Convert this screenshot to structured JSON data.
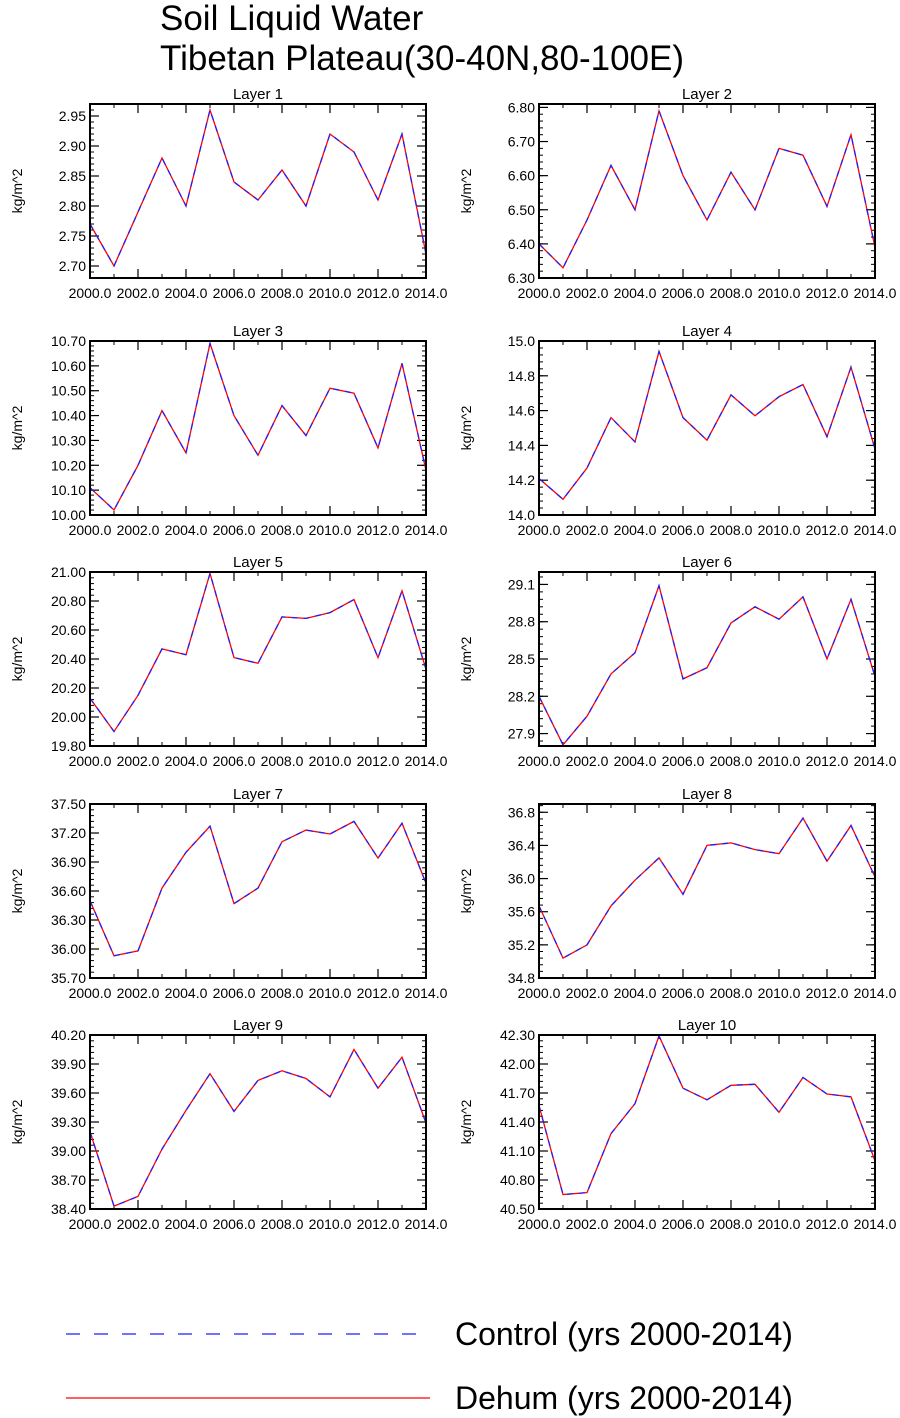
{
  "figure": {
    "title_line1": "Soil Liquid Water",
    "title_line2": "Tibetan Plateau(30-40N,80-100E)"
  },
  "colors": {
    "control": "#1f1fff",
    "dehum": "#ff0000",
    "axis": "#000000"
  },
  "legend": {
    "control_label": "Control (yrs 2000-2014)",
    "dehum_label": "Dehum (yrs 2000-2014)"
  },
  "chart_data": [
    {
      "type": "line",
      "title": "Layer 1",
      "xlabel": "",
      "ylabel": "kg/m^2",
      "xlim": [
        2000,
        2014
      ],
      "xticks": [
        2000,
        2002,
        2004,
        2006,
        2008,
        2010,
        2012,
        2014
      ],
      "xtick_labels": [
        "2000.0",
        "2002.0",
        "2004.0",
        "2006.0",
        "2008.0",
        "2010.0",
        "2012.0",
        "2014.0"
      ],
      "ylim": [
        2.68,
        2.97
      ],
      "yticks": [
        2.7,
        2.75,
        2.8,
        2.85,
        2.9,
        2.95
      ],
      "ytick_labels": [
        "2.70",
        "2.75",
        "2.80",
        "2.85",
        "2.90",
        "2.95"
      ],
      "x": [
        2000,
        2001,
        2002,
        2003,
        2004,
        2005,
        2006,
        2007,
        2008,
        2009,
        2010,
        2011,
        2012,
        2013,
        2014
      ],
      "series": [
        {
          "name": "Control (yrs 2000-2014)",
          "values": [
            2.77,
            2.7,
            2.79,
            2.88,
            2.8,
            2.96,
            2.84,
            2.81,
            2.86,
            2.8,
            2.92,
            2.89,
            2.81,
            2.92,
            2.72
          ]
        },
        {
          "name": "Dehum (yrs 2000-2014)",
          "values": [
            2.77,
            2.7,
            2.79,
            2.88,
            2.8,
            2.96,
            2.84,
            2.81,
            2.86,
            2.8,
            2.92,
            2.89,
            2.81,
            2.92,
            2.72
          ]
        }
      ]
    },
    {
      "type": "line",
      "title": "Layer 2",
      "xlabel": "",
      "ylabel": "kg/m^2",
      "xlim": [
        2000,
        2014
      ],
      "xticks": [
        2000,
        2002,
        2004,
        2006,
        2008,
        2010,
        2012,
        2014
      ],
      "xtick_labels": [
        "2000.0",
        "2002.0",
        "2004.0",
        "2006.0",
        "2008.0",
        "2010.0",
        "2012.0",
        "2014.0"
      ],
      "ylim": [
        6.3,
        6.81
      ],
      "yticks": [
        6.3,
        6.4,
        6.5,
        6.6,
        6.7,
        6.8
      ],
      "ytick_labels": [
        "6.30",
        "6.40",
        "6.50",
        "6.60",
        "6.70",
        "6.80"
      ],
      "x": [
        2000,
        2001,
        2002,
        2003,
        2004,
        2005,
        2006,
        2007,
        2008,
        2009,
        2010,
        2011,
        2012,
        2013,
        2014
      ],
      "series": [
        {
          "name": "Control (yrs 2000-2014)",
          "values": [
            6.4,
            6.33,
            6.47,
            6.63,
            6.5,
            6.79,
            6.6,
            6.47,
            6.61,
            6.5,
            6.68,
            6.66,
            6.51,
            6.72,
            6.39
          ]
        },
        {
          "name": "Dehum (yrs 2000-2014)",
          "values": [
            6.4,
            6.33,
            6.47,
            6.63,
            6.5,
            6.79,
            6.6,
            6.47,
            6.61,
            6.5,
            6.68,
            6.66,
            6.51,
            6.72,
            6.39
          ]
        }
      ]
    },
    {
      "type": "line",
      "title": "Layer 3",
      "xlabel": "",
      "ylabel": "kg/m^2",
      "xlim": [
        2000,
        2014
      ],
      "xticks": [
        2000,
        2002,
        2004,
        2006,
        2008,
        2010,
        2012,
        2014
      ],
      "xtick_labels": [
        "2000.0",
        "2002.0",
        "2004.0",
        "2006.0",
        "2008.0",
        "2010.0",
        "2012.0",
        "2014.0"
      ],
      "ylim": [
        10.0,
        10.7
      ],
      "yticks": [
        10.0,
        10.1,
        10.2,
        10.3,
        10.4,
        10.5,
        10.6,
        10.7
      ],
      "ytick_labels": [
        "10.00",
        "10.10",
        "10.20",
        "10.30",
        "10.40",
        "10.50",
        "10.60",
        "10.70"
      ],
      "x": [
        2000,
        2001,
        2002,
        2003,
        2004,
        2005,
        2006,
        2007,
        2008,
        2009,
        2010,
        2011,
        2012,
        2013,
        2014
      ],
      "series": [
        {
          "name": "Control (yrs 2000-2014)",
          "values": [
            10.11,
            10.02,
            10.2,
            10.42,
            10.25,
            10.69,
            10.4,
            10.24,
            10.44,
            10.32,
            10.51,
            10.49,
            10.27,
            10.61,
            10.18
          ]
        },
        {
          "name": "Dehum (yrs 2000-2014)",
          "values": [
            10.11,
            10.02,
            10.2,
            10.42,
            10.25,
            10.69,
            10.4,
            10.24,
            10.44,
            10.32,
            10.51,
            10.49,
            10.27,
            10.61,
            10.18
          ]
        }
      ]
    },
    {
      "type": "line",
      "title": "Layer 4",
      "xlabel": "",
      "ylabel": "kg/m^2",
      "xlim": [
        2000,
        2014
      ],
      "xticks": [
        2000,
        2002,
        2004,
        2006,
        2008,
        2010,
        2012,
        2014
      ],
      "xtick_labels": [
        "2000.0",
        "2002.0",
        "2004.0",
        "2006.0",
        "2008.0",
        "2010.0",
        "2012.0",
        "2014.0"
      ],
      "ylim": [
        14.0,
        15.0
      ],
      "yticks": [
        14.0,
        14.2,
        14.4,
        14.6,
        14.8,
        15.0
      ],
      "ytick_labels": [
        "14.0",
        "14.2",
        "14.4",
        "14.6",
        "14.8",
        "15.0"
      ],
      "x": [
        2000,
        2001,
        2002,
        2003,
        2004,
        2005,
        2006,
        2007,
        2008,
        2009,
        2010,
        2011,
        2012,
        2013,
        2014
      ],
      "series": [
        {
          "name": "Control (yrs 2000-2014)",
          "values": [
            14.21,
            14.09,
            14.27,
            14.56,
            14.42,
            14.94,
            14.56,
            14.43,
            14.69,
            14.57,
            14.68,
            14.75,
            14.45,
            14.85,
            14.38
          ]
        },
        {
          "name": "Dehum (yrs 2000-2014)",
          "values": [
            14.21,
            14.09,
            14.27,
            14.56,
            14.42,
            14.94,
            14.56,
            14.43,
            14.69,
            14.57,
            14.68,
            14.75,
            14.45,
            14.85,
            14.38
          ]
        }
      ]
    },
    {
      "type": "line",
      "title": "Layer 5",
      "xlabel": "",
      "ylabel": "kg/m^2",
      "xlim": [
        2000,
        2014
      ],
      "xticks": [
        2000,
        2002,
        2004,
        2006,
        2008,
        2010,
        2012,
        2014
      ],
      "xtick_labels": [
        "2000.0",
        "2002.0",
        "2004.0",
        "2006.0",
        "2008.0",
        "2010.0",
        "2012.0",
        "2014.0"
      ],
      "ylim": [
        19.8,
        21.0
      ],
      "yticks": [
        19.8,
        20.0,
        20.2,
        20.4,
        20.6,
        20.8,
        21.0
      ],
      "ytick_labels": [
        "19.80",
        "20.00",
        "20.20",
        "20.40",
        "20.60",
        "20.80",
        "21.00"
      ],
      "x": [
        2000,
        2001,
        2002,
        2003,
        2004,
        2005,
        2006,
        2007,
        2008,
        2009,
        2010,
        2011,
        2012,
        2013,
        2014
      ],
      "series": [
        {
          "name": "Control (yrs 2000-2014)",
          "values": [
            20.13,
            19.9,
            20.15,
            20.47,
            20.43,
            20.99,
            20.41,
            20.37,
            20.69,
            20.68,
            20.72,
            20.81,
            20.41,
            20.87,
            20.33
          ]
        },
        {
          "name": "Dehum (yrs 2000-2014)",
          "values": [
            20.13,
            19.9,
            20.15,
            20.47,
            20.43,
            20.99,
            20.41,
            20.37,
            20.69,
            20.68,
            20.72,
            20.81,
            20.41,
            20.87,
            20.33
          ]
        }
      ]
    },
    {
      "type": "line",
      "title": "Layer 6",
      "xlabel": "",
      "ylabel": "kg/m^2",
      "xlim": [
        2000,
        2014
      ],
      "xticks": [
        2000,
        2002,
        2004,
        2006,
        2008,
        2010,
        2012,
        2014
      ],
      "xtick_labels": [
        "2000.0",
        "2002.0",
        "2004.0",
        "2006.0",
        "2008.0",
        "2010.0",
        "2012.0",
        "2014.0"
      ],
      "ylim": [
        27.8,
        29.2
      ],
      "yticks": [
        27.9,
        28.2,
        28.5,
        28.8,
        29.1
      ],
      "ytick_labels": [
        "27.9",
        "28.2",
        "28.5",
        "28.8",
        "29.1"
      ],
      "x": [
        2000,
        2001,
        2002,
        2003,
        2004,
        2005,
        2006,
        2007,
        2008,
        2009,
        2010,
        2011,
        2012,
        2013,
        2014
      ],
      "series": [
        {
          "name": "Control (yrs 2000-2014)",
          "values": [
            28.2,
            27.81,
            28.04,
            28.38,
            28.55,
            29.09,
            28.34,
            28.43,
            28.79,
            28.92,
            28.82,
            29.0,
            28.5,
            28.98,
            28.36
          ]
        },
        {
          "name": "Dehum (yrs 2000-2014)",
          "values": [
            28.2,
            27.81,
            28.04,
            28.38,
            28.55,
            29.09,
            28.34,
            28.43,
            28.79,
            28.92,
            28.82,
            29.0,
            28.5,
            28.98,
            28.36
          ]
        }
      ]
    },
    {
      "type": "line",
      "title": "Layer 7",
      "xlabel": "",
      "ylabel": "kg/m^2",
      "xlim": [
        2000,
        2014
      ],
      "xticks": [
        2000,
        2002,
        2004,
        2006,
        2008,
        2010,
        2012,
        2014
      ],
      "xtick_labels": [
        "2000.0",
        "2002.0",
        "2004.0",
        "2006.0",
        "2008.0",
        "2010.0",
        "2012.0",
        "2014.0"
      ],
      "ylim": [
        35.7,
        37.5
      ],
      "yticks": [
        35.7,
        36.0,
        36.3,
        36.6,
        36.9,
        37.2,
        37.5
      ],
      "ytick_labels": [
        "35.70",
        "36.00",
        "36.30",
        "36.60",
        "36.90",
        "37.20",
        "37.50"
      ],
      "x": [
        2000,
        2001,
        2002,
        2003,
        2004,
        2005,
        2006,
        2007,
        2008,
        2009,
        2010,
        2011,
        2012,
        2013,
        2014
      ],
      "series": [
        {
          "name": "Control (yrs 2000-2014)",
          "values": [
            36.5,
            35.93,
            35.98,
            36.63,
            37.0,
            37.27,
            36.47,
            36.63,
            37.11,
            37.23,
            37.19,
            37.32,
            36.94,
            37.3,
            36.68
          ]
        },
        {
          "name": "Dehum (yrs 2000-2014)",
          "values": [
            36.5,
            35.93,
            35.98,
            36.63,
            37.0,
            37.27,
            36.47,
            36.63,
            37.11,
            37.23,
            37.19,
            37.32,
            36.94,
            37.3,
            36.68
          ]
        }
      ]
    },
    {
      "type": "line",
      "title": "Layer 8",
      "xlabel": "",
      "ylabel": "kg/m^2",
      "xlim": [
        2000,
        2014
      ],
      "xticks": [
        2000,
        2002,
        2004,
        2006,
        2008,
        2010,
        2012,
        2014
      ],
      "xtick_labels": [
        "2000.0",
        "2002.0",
        "2004.0",
        "2006.0",
        "2008.0",
        "2010.0",
        "2012.0",
        "2014.0"
      ],
      "ylim": [
        34.8,
        36.9
      ],
      "yticks": [
        34.8,
        35.2,
        35.6,
        36.0,
        36.4,
        36.8
      ],
      "ytick_labels": [
        "34.8",
        "35.2",
        "35.6",
        "36.0",
        "36.4",
        "36.8"
      ],
      "x": [
        2000,
        2001,
        2002,
        2003,
        2004,
        2005,
        2006,
        2007,
        2008,
        2009,
        2010,
        2011,
        2012,
        2013,
        2014
      ],
      "series": [
        {
          "name": "Control (yrs 2000-2014)",
          "values": [
            35.67,
            35.04,
            35.2,
            35.67,
            35.98,
            36.25,
            35.81,
            36.4,
            36.43,
            36.35,
            36.3,
            36.73,
            36.21,
            36.64,
            36.02
          ]
        },
        {
          "name": "Dehum (yrs 2000-2014)",
          "values": [
            35.67,
            35.04,
            35.2,
            35.67,
            35.98,
            36.25,
            35.81,
            36.4,
            36.43,
            36.35,
            36.3,
            36.73,
            36.21,
            36.64,
            36.02
          ]
        }
      ]
    },
    {
      "type": "line",
      "title": "Layer 9",
      "xlabel": "",
      "ylabel": "kg/m^2",
      "xlim": [
        2000,
        2014
      ],
      "xticks": [
        2000,
        2002,
        2004,
        2006,
        2008,
        2010,
        2012,
        2014
      ],
      "xtick_labels": [
        "2000.0",
        "2002.0",
        "2004.0",
        "2006.0",
        "2008.0",
        "2010.0",
        "2012.0",
        "2014.0"
      ],
      "ylim": [
        38.4,
        40.2
      ],
      "yticks": [
        38.4,
        38.7,
        39.0,
        39.3,
        39.6,
        39.9,
        40.2
      ],
      "ytick_labels": [
        "38.40",
        "38.70",
        "39.00",
        "39.30",
        "39.60",
        "39.90",
        "40.20"
      ],
      "x": [
        2000,
        2001,
        2002,
        2003,
        2004,
        2005,
        2006,
        2007,
        2008,
        2009,
        2010,
        2011,
        2012,
        2013,
        2014
      ],
      "series": [
        {
          "name": "Control (yrs 2000-2014)",
          "values": [
            39.2,
            38.43,
            38.53,
            39.02,
            39.42,
            39.8,
            39.41,
            39.73,
            39.83,
            39.75,
            39.56,
            40.05,
            39.65,
            39.97,
            39.29
          ]
        },
        {
          "name": "Dehum (yrs 2000-2014)",
          "values": [
            39.2,
            38.43,
            38.53,
            39.02,
            39.42,
            39.8,
            39.41,
            39.73,
            39.83,
            39.75,
            39.56,
            40.05,
            39.65,
            39.97,
            39.29
          ]
        }
      ]
    },
    {
      "type": "line",
      "title": "Layer 10",
      "xlabel": "",
      "ylabel": "kg/m^2",
      "xlim": [
        2000,
        2014
      ],
      "xticks": [
        2000,
        2002,
        2004,
        2006,
        2008,
        2010,
        2012,
        2014
      ],
      "xtick_labels": [
        "2000.0",
        "2002.0",
        "2004.0",
        "2006.0",
        "2008.0",
        "2010.0",
        "2012.0",
        "2014.0"
      ],
      "ylim": [
        40.5,
        42.3
      ],
      "yticks": [
        40.5,
        40.8,
        41.1,
        41.4,
        41.7,
        42.0,
        42.3
      ],
      "ytick_labels": [
        "40.50",
        "40.80",
        "41.10",
        "41.40",
        "41.70",
        "42.00",
        "42.30"
      ],
      "x": [
        2000,
        2001,
        2002,
        2003,
        2004,
        2005,
        2006,
        2007,
        2008,
        2009,
        2010,
        2011,
        2012,
        2013,
        2014
      ],
      "series": [
        {
          "name": "Control (yrs 2000-2014)",
          "values": [
            41.57,
            40.65,
            40.67,
            41.28,
            41.59,
            42.29,
            41.75,
            41.63,
            41.78,
            41.79,
            41.5,
            41.86,
            41.69,
            41.66,
            41.0
          ]
        },
        {
          "name": "Dehum (yrs 2000-2014)",
          "values": [
            41.57,
            40.65,
            40.67,
            41.28,
            41.59,
            42.29,
            41.75,
            41.63,
            41.78,
            41.79,
            41.5,
            41.86,
            41.69,
            41.66,
            41.0
          ]
        }
      ]
    }
  ]
}
